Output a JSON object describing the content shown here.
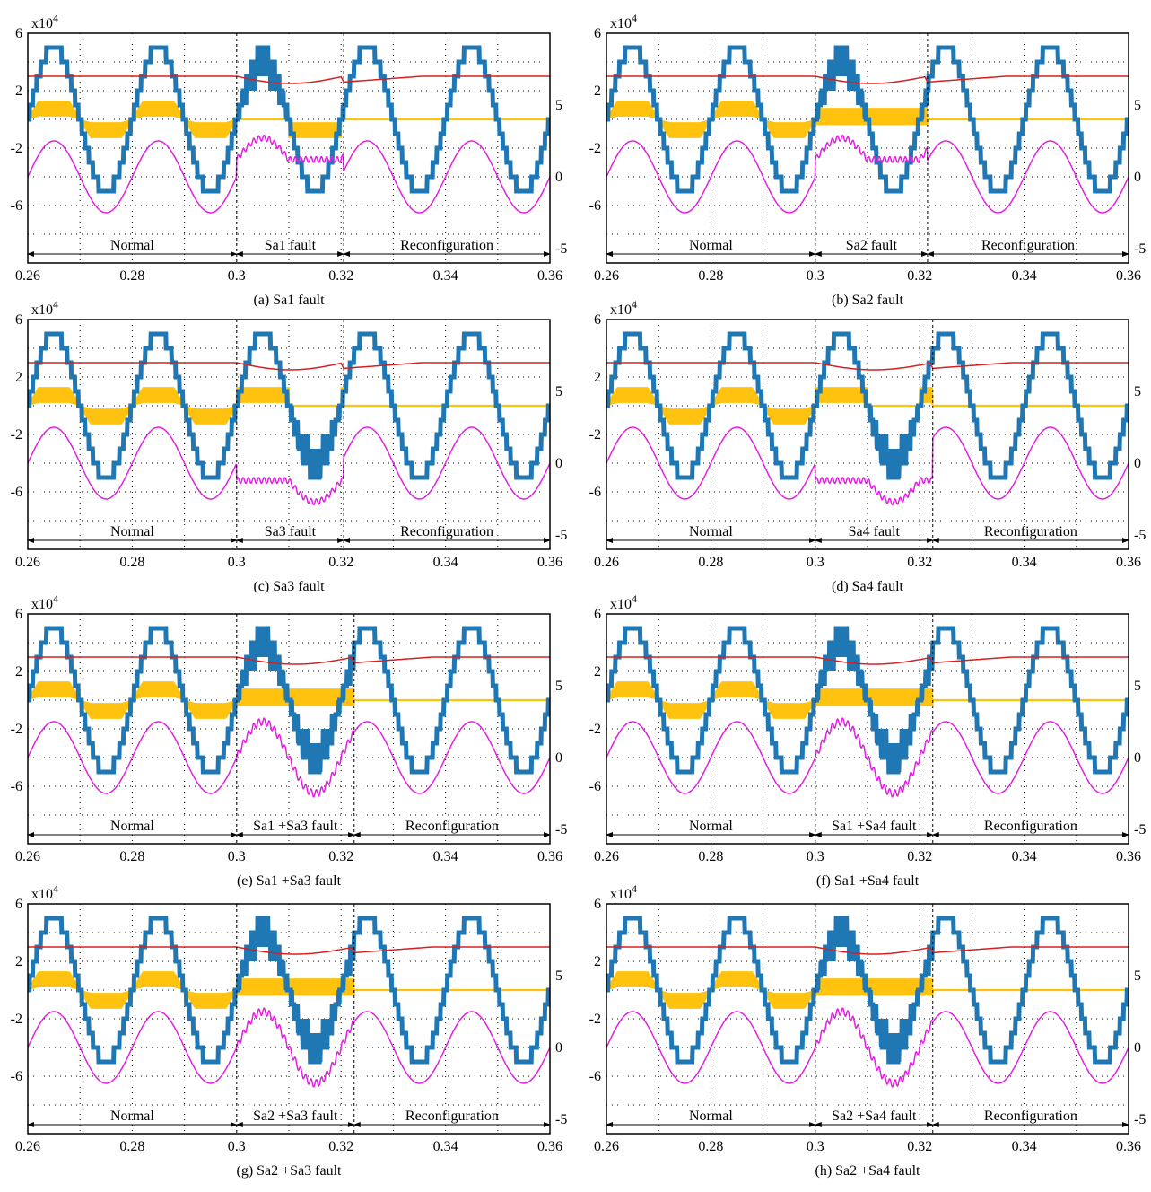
{
  "chart_data": {
    "type": "line",
    "x": {
      "range": [
        0.26,
        0.36
      ],
      "ticks": [
        0.26,
        0.28,
        0.3,
        0.32,
        0.34,
        0.36
      ],
      "tick_labels": [
        "0.26",
        "0.28",
        "0.3",
        "0.32",
        "0.34",
        "0.36"
      ]
    },
    "left_axis": {
      "range": [
        -10,
        6
      ],
      "ticks": [
        6,
        2,
        -2,
        -6
      ],
      "tick_labels": [
        "6",
        "2",
        "-2",
        "-6"
      ],
      "multiplier_base": "x10",
      "multiplier_exp": "4"
    },
    "right_axis": {
      "range": [
        -6,
        10
      ],
      "ticks": [
        5,
        0,
        -5
      ],
      "tick_labels": [
        "5",
        "0",
        "-5"
      ]
    },
    "grid": true,
    "fault_start": 0.3,
    "panels": [
      {
        "id": "a",
        "caption": "(a) Sa1 fault",
        "fault_label": "Sa1 fault",
        "normal_label": "Normal",
        "reconfig_label": "Reconfiguration",
        "fault_end": 0.3205,
        "fault_pos_suppressed": true,
        "fault_neg_suppressed": false,
        "fault_yellow": "neg",
        "after_yellow": "flat",
        "current_fault_offset": 1.0
      },
      {
        "id": "b",
        "caption": "(b) Sa2 fault",
        "fault_label": "Sa2 fault",
        "normal_label": "Normal",
        "reconfig_label": "Reconfiguration",
        "fault_end": 0.3215,
        "fault_pos_suppressed": true,
        "fault_neg_suppressed": false,
        "fault_yellow": "flat",
        "after_yellow": "flat",
        "current_fault_offset": 0.8
      },
      {
        "id": "c",
        "caption": "(c) Sa3 fault",
        "fault_label": "Sa3 fault",
        "normal_label": "Normal",
        "reconfig_label": "Reconfiguration",
        "fault_end": 0.3205,
        "fault_pos_suppressed": false,
        "fault_neg_suppressed": true,
        "fault_yellow": "pos",
        "after_yellow": "flat",
        "current_fault_offset": -0.9
      },
      {
        "id": "d",
        "caption": "(d) Sa4 fault",
        "fault_label": "Sa4 fault",
        "normal_label": "Normal",
        "reconfig_label": "Reconfiguration",
        "fault_end": 0.3225,
        "fault_pos_suppressed": false,
        "fault_neg_suppressed": true,
        "fault_yellow": "pos",
        "after_yellow": "flat",
        "current_fault_offset": -1.0
      },
      {
        "id": "e",
        "caption": "(e) Sa1 +Sa3 fault",
        "fault_label": "Sa1 +Sa3 fault",
        "normal_label": "Normal",
        "reconfig_label": "Reconfiguration",
        "fault_end": 0.3225,
        "fault_pos_suppressed": true,
        "fault_neg_suppressed": true,
        "fault_yellow": "flat",
        "after_yellow": "flat",
        "current_fault_offset": 0.6
      },
      {
        "id": "f",
        "caption": "(f) Sa1 +Sa4 fault",
        "fault_label": "Sa1 +Sa4 fault",
        "normal_label": "Normal",
        "reconfig_label": "Reconfiguration",
        "fault_end": 0.3225,
        "fault_pos_suppressed": true,
        "fault_neg_suppressed": true,
        "fault_yellow": "flat",
        "after_yellow": "flat",
        "current_fault_offset": 0.0
      },
      {
        "id": "g",
        "caption": "(g) Sa2 +Sa3 fault",
        "fault_label": "Sa2 +Sa3 fault",
        "normal_label": "Normal",
        "reconfig_label": "Reconfiguration",
        "fault_end": 0.3225,
        "fault_pos_suppressed": true,
        "fault_neg_suppressed": true,
        "fault_yellow": "flat",
        "after_yellow": "flat",
        "current_fault_offset": 0.0
      },
      {
        "id": "h",
        "caption": "(h) Sa2 +Sa4 fault",
        "fault_label": "Sa2 +Sa4 fault",
        "normal_label": "Normal",
        "reconfig_label": "Reconfiguration",
        "fault_end": 0.3225,
        "fault_pos_suppressed": true,
        "fault_neg_suppressed": true,
        "fault_yellow": "flat",
        "after_yellow": "flat",
        "current_fault_offset": 0.0
      }
    ],
    "series_colors": {
      "staircase_voltage": "#1f77b4",
      "cell_voltage": "#ffc20e",
      "dc_level": "#d62020",
      "current": "#e020e0"
    },
    "waveform": {
      "frequency_hz": 50,
      "voltage_amplitude": 5,
      "voltage_levels": 5,
      "dc_level": 3,
      "current_center": 0,
      "current_amplitude": 2.5
    }
  }
}
